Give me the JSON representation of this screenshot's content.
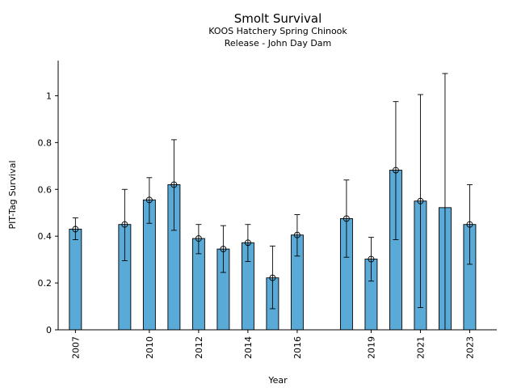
{
  "chart_data": {
    "type": "bar",
    "title": "Smolt Survival",
    "subtitle_lines": [
      "KOOS Hatchery Spring Chinook",
      "Release - John Day Dam"
    ],
    "xlabel": "Year",
    "ylabel": "PIT-Tag Survival",
    "ylim": [
      0,
      1.15
    ],
    "yticks": [
      0,
      0.2,
      0.4,
      0.6,
      0.8,
      1
    ],
    "ytick_labels": [
      "0",
      "0.2",
      "0.4",
      "0.6",
      "0.8",
      "1"
    ],
    "xlim": [
      2006.3,
      2024.1
    ],
    "xticks": [
      2007,
      2010,
      2012,
      2014,
      2016,
      2019,
      2021,
      2023
    ],
    "xtick_labels": [
      "2007",
      "2010",
      "2012",
      "2014",
      "2016",
      "2019",
      "2021",
      "2023"
    ],
    "grid": false,
    "colors": {
      "bar": "#5aaad8",
      "edge": "#000000",
      "marker": "#000000"
    },
    "x": [
      2007,
      2009,
      2010,
      2011,
      2012,
      2013,
      2014,
      2015,
      2016,
      2018,
      2019,
      2020,
      2021,
      2022,
      2023
    ],
    "values": [
      0.43,
      0.45,
      0.555,
      0.62,
      0.39,
      0.345,
      0.372,
      0.222,
      0.405,
      0.475,
      0.302,
      0.682,
      0.55,
      0.522,
      0.45
    ],
    "error_low": [
      0.385,
      0.295,
      0.455,
      0.425,
      0.325,
      0.245,
      0.292,
      0.09,
      0.315,
      0.31,
      0.208,
      0.385,
      0.095,
      null,
      0.28
    ],
    "error_high": [
      0.478,
      0.6,
      0.65,
      0.812,
      0.45,
      0.445,
      0.45,
      0.358,
      0.492,
      0.64,
      0.395,
      0.975,
      1.005,
      1.095,
      0.62
    ],
    "show_marker": [
      true,
      true,
      true,
      true,
      true,
      true,
      true,
      true,
      true,
      true,
      true,
      true,
      true,
      false,
      true
    ]
  }
}
